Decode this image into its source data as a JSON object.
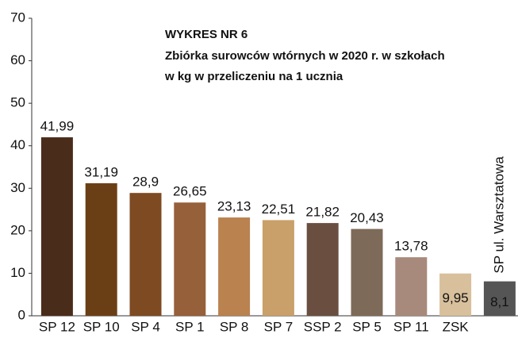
{
  "chart_data": {
    "type": "bar",
    "title": "WYKRES NR  6",
    "subtitle": [
      "Zbiórka surowców wtórnych w 2020 r. w szkołach",
      "w kg w przeliczeniu na 1 ucznia"
    ],
    "categories": [
      "SP 12",
      "SP 10",
      "SP 4",
      "SP 1",
      "SP 8",
      "SP 7",
      "SSP 2",
      "SP 5",
      "SP 11",
      "ZSK",
      "SP ul. Warsztatowa"
    ],
    "values": [
      41.99,
      31.19,
      28.9,
      26.65,
      23.13,
      22.51,
      21.82,
      20.43,
      13.78,
      9.95,
      8.1
    ],
    "value_labels": [
      "41,99",
      "31,19",
      "28,9",
      "26,65",
      "23,13",
      "22,51",
      "21,82",
      "20,43",
      "13,78",
      "9,95",
      "8,1"
    ],
    "colors": [
      "#4a2c1a",
      "#6b3f16",
      "#7d4a22",
      "#96603a",
      "#b9824f",
      "#c9a06a",
      "#6a4f40",
      "#7d6a58",
      "#a88a7c",
      "#d8c09c",
      "#555555"
    ],
    "ylim": [
      0,
      70
    ],
    "yticks": [
      0,
      10,
      20,
      30,
      40,
      50,
      60,
      70
    ],
    "grid": false
  }
}
